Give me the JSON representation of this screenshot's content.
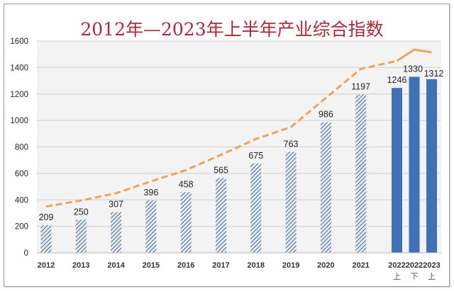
{
  "chart_data": {
    "type": "bar",
    "title": "2012年—2023年上半年产业综合指数",
    "xlabel": "",
    "ylabel": "",
    "ylim": [
      0,
      1600
    ],
    "yticks": [
      0,
      200,
      400,
      600,
      800,
      1000,
      1200,
      1400,
      1600
    ],
    "grid": true,
    "legend": "none",
    "categories": [
      {
        "label": "2012",
        "sub": ""
      },
      {
        "label": "2013",
        "sub": ""
      },
      {
        "label": "2014",
        "sub": ""
      },
      {
        "label": "2015",
        "sub": ""
      },
      {
        "label": "2016",
        "sub": ""
      },
      {
        "label": "2017",
        "sub": ""
      },
      {
        "label": "2018",
        "sub": ""
      },
      {
        "label": "2019",
        "sub": ""
      },
      {
        "label": "2020",
        "sub": ""
      },
      {
        "label": "2021",
        "sub": ""
      },
      {
        "label": "2022",
        "sub": "上"
      },
      {
        "label": "2022",
        "sub": "下"
      },
      {
        "label": "2023",
        "sub": "上"
      }
    ],
    "series": [
      {
        "name": "产业综合指数",
        "type": "bar",
        "values": [
          209,
          250,
          307,
          396,
          458,
          565,
          675,
          763,
          986,
          1197,
          1246,
          1330,
          1312
        ],
        "labels": [
          "209",
          "250",
          "307",
          "396",
          "458",
          "565",
          "675",
          "763",
          "986",
          "1197",
          "1246",
          "1330",
          "1312"
        ],
        "styles": [
          "hatched",
          "hatched",
          "hatched",
          "hatched",
          "hatched",
          "hatched",
          "hatched",
          "hatched",
          "hatched",
          "hatched",
          "solid",
          "solid",
          "solid"
        ]
      },
      {
        "name": "trend",
        "type": "line",
        "values": [
          350,
          395,
          450,
          540,
          625,
          740,
          860,
          950,
          1170,
          1390,
          1450,
          1535,
          1515
        ],
        "dashed_until_index": 10
      }
    ],
    "colors": {
      "bar_solid": "#3f72b5",
      "bar_hatch": "#4a6f94",
      "line": "#f0a255",
      "title": "#b3263a",
      "grid": "#d6d6d6",
      "plot_bg": "#f3f3f3"
    }
  }
}
